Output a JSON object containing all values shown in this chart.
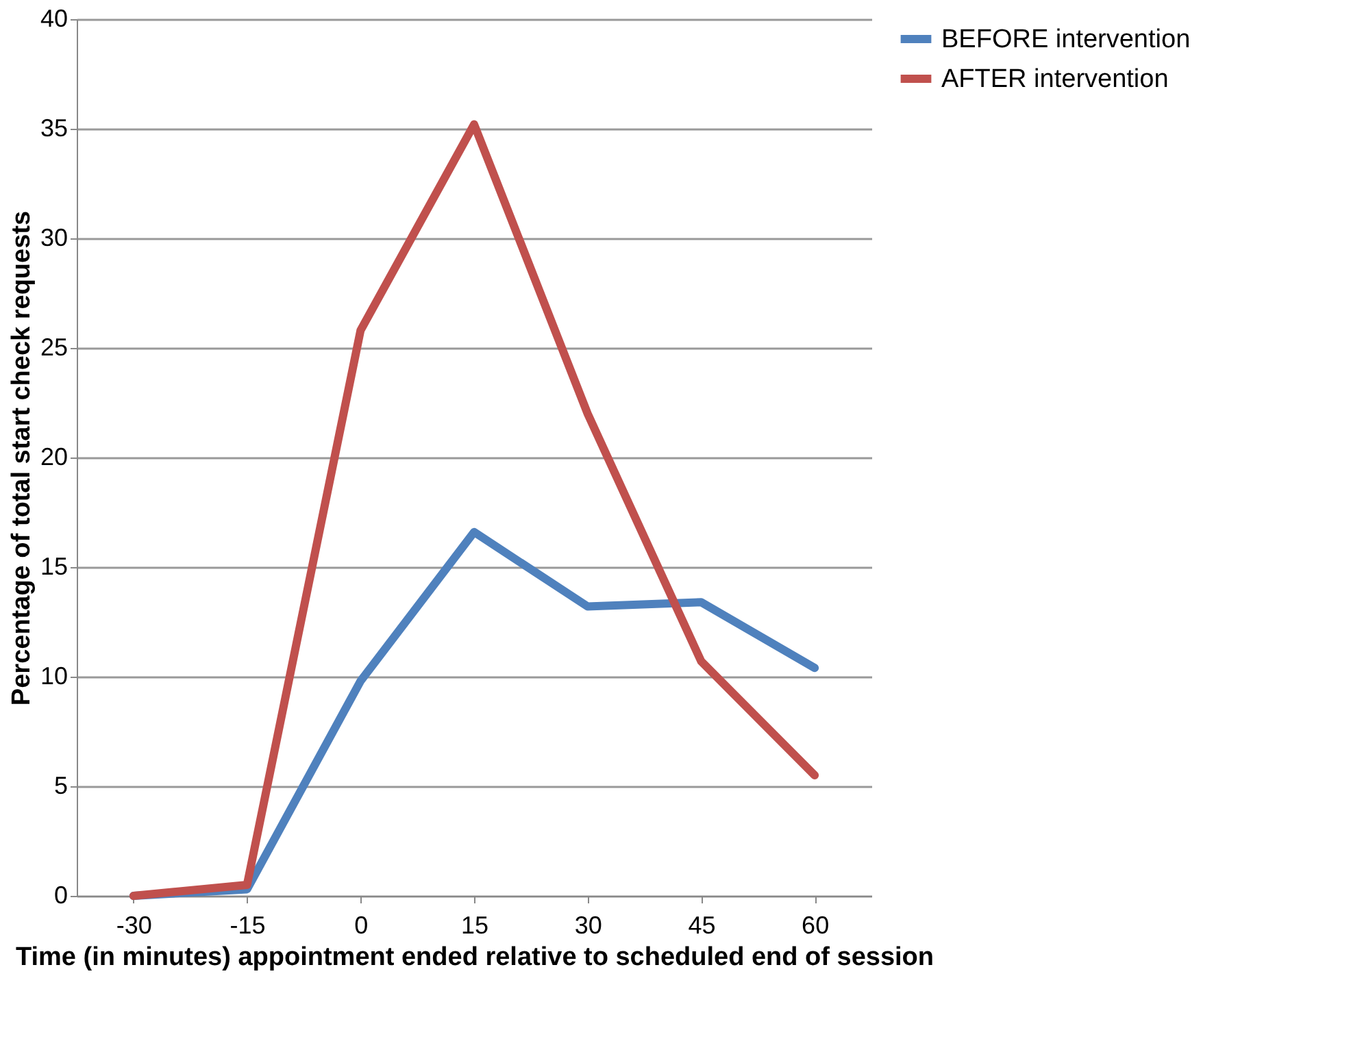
{
  "chart_data": {
    "type": "line",
    "xlabel": "Time (in minutes) appointment ended relative to scheduled end of session",
    "ylabel": "Percentage of total start check requests",
    "categories": [
      "-30",
      "-15",
      "0",
      "15",
      "30",
      "45",
      "60"
    ],
    "series": [
      {
        "name": "BEFORE intervention",
        "color": "#4f81bd",
        "values": [
          0,
          0.3,
          9.8,
          16.6,
          13.2,
          13.4,
          10.4
        ]
      },
      {
        "name": "AFTER intervention",
        "color": "#c0504d",
        "values": [
          0,
          0.5,
          25.8,
          35.2,
          22.0,
          10.7,
          5.5
        ]
      }
    ],
    "ylim": [
      0,
      40
    ],
    "yticks": [
      0,
      5,
      10,
      15,
      20,
      25,
      30,
      35,
      40
    ],
    "grid": "y",
    "legend": "right"
  }
}
